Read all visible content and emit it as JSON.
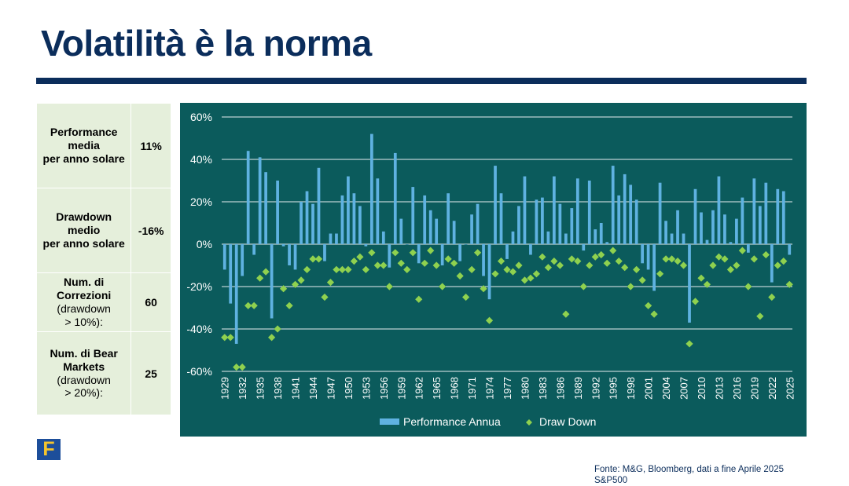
{
  "slide": {
    "title": "Volatilità è la norma",
    "logo_letter": "F",
    "source": "Fonte: M&G, Bloomberg, dati a fine Aprile 2025",
    "index_name": "S&P500"
  },
  "stats_table": [
    {
      "label": [
        "Performance",
        "media",
        "per anno solare"
      ],
      "label_style": "bold",
      "value": "11%"
    },
    {
      "label": [
        "Drawdown",
        "medio",
        "per anno solare"
      ],
      "label_style": "bold",
      "value": "-16%"
    },
    {
      "label": [
        "Num.  di",
        "Correzioni"
      ],
      "label_extra": [
        "(drawdown",
        "> 10%):"
      ],
      "value": "60"
    },
    {
      "label": [
        "Num. di Bear",
        "Markets"
      ],
      "label_extra": [
        "(drawdown",
        "> 20%):"
      ],
      "value": "25"
    }
  ],
  "chart_data": {
    "type": "bar",
    "title": "",
    "xlabel": "",
    "ylabel": "",
    "ylim": [
      -60,
      60
    ],
    "y_ticks": [
      "60%",
      "40%",
      "20%",
      "0%",
      "-20%",
      "-40%",
      "-60%"
    ],
    "y_tick_values": [
      60,
      40,
      20,
      0,
      -20,
      -40,
      -60
    ],
    "grid": true,
    "legend_position": "bottom",
    "x_tick_labels": [
      "1929",
      "1932",
      "1935",
      "1938",
      "1941",
      "1944",
      "1947",
      "1950",
      "1953",
      "1956",
      "1959",
      "1962",
      "1965",
      "1968",
      "1971",
      "1974",
      "1977",
      "1980",
      "1983",
      "1986",
      "1989",
      "1992",
      "1995",
      "1998",
      "2001",
      "2004",
      "2007",
      "2010",
      "2013",
      "2016",
      "2019",
      "2022",
      "2025"
    ],
    "colors": {
      "background": "#0b5b5c",
      "bar": "#5fb2e1",
      "marker": "#8fd14f",
      "grid": "#ffffff",
      "text": "#ffffff"
    },
    "x": [
      1929,
      1930,
      1931,
      1932,
      1933,
      1934,
      1935,
      1936,
      1937,
      1938,
      1939,
      1940,
      1941,
      1942,
      1943,
      1944,
      1945,
      1946,
      1947,
      1948,
      1949,
      1950,
      1951,
      1952,
      1953,
      1954,
      1955,
      1956,
      1957,
      1958,
      1959,
      1960,
      1961,
      1962,
      1963,
      1964,
      1965,
      1966,
      1967,
      1968,
      1969,
      1970,
      1971,
      1972,
      1973,
      1974,
      1975,
      1976,
      1977,
      1978,
      1979,
      1980,
      1981,
      1982,
      1983,
      1984,
      1985,
      1986,
      1987,
      1988,
      1989,
      1990,
      1991,
      1992,
      1993,
      1994,
      1995,
      1996,
      1997,
      1998,
      1999,
      2000,
      2001,
      2002,
      2003,
      2004,
      2005,
      2006,
      2007,
      2008,
      2009,
      2010,
      2011,
      2012,
      2013,
      2014,
      2015,
      2016,
      2017,
      2018,
      2019,
      2020,
      2021,
      2022,
      2023,
      2024,
      2025
    ],
    "series": [
      {
        "name": "Performance Annua",
        "kind": "bar",
        "values": [
          -12,
          -28,
          -47,
          -15,
          44,
          -5,
          41,
          34,
          -35,
          30,
          -1,
          -10,
          -12,
          20,
          25,
          19,
          36,
          -8,
          5,
          5,
          23,
          32,
          24,
          18,
          -1,
          52,
          31,
          6,
          -11,
          43,
          12,
          0,
          27,
          -9,
          23,
          16,
          12,
          -10,
          24,
          11,
          -8,
          0,
          14,
          19,
          -15,
          -26,
          37,
          24,
          -7,
          6,
          18,
          32,
          -5,
          21,
          22,
          6,
          32,
          19,
          5,
          17,
          31,
          -3,
          30,
          7,
          10,
          1,
          37,
          23,
          33,
          28,
          21,
          -9,
          -12,
          -22,
          29,
          11,
          5,
          16,
          5,
          -37,
          26,
          15,
          2,
          16,
          32,
          14,
          1,
          12,
          22,
          -4,
          31,
          18,
          29,
          -18,
          26,
          25,
          -5
        ]
      },
      {
        "name": "Draw Down",
        "kind": "marker",
        "values": [
          -44,
          -44,
          -58,
          -58,
          -29,
          -29,
          -16,
          -13,
          -44,
          -40,
          -21,
          -29,
          -19,
          -17,
          -12,
          -7,
          -7,
          -25,
          -18,
          -12,
          -12,
          -12,
          -8,
          -6,
          -12,
          -4,
          -10,
          -10,
          -20,
          -4,
          -9,
          -12,
          -4,
          -26,
          -9,
          -3,
          -10,
          -20,
          -7,
          -9,
          -15,
          -25,
          -12,
          -4,
          -21,
          -36,
          -14,
          -8,
          -12,
          -13,
          -10,
          -17,
          -16,
          -14,
          -6,
          -11,
          -8,
          -10,
          -33,
          -7,
          -8,
          -20,
          -10,
          -6,
          -5,
          -9,
          -3,
          -8,
          -11,
          -20,
          -12,
          -17,
          -29,
          -33,
          -14,
          -7,
          -7,
          -8,
          -10,
          -47,
          -27,
          -16,
          -19,
          -10,
          -6,
          -7,
          -12,
          -10,
          -3,
          -20,
          -7,
          -34,
          -5,
          -25,
          -10,
          -8,
          -19
        ]
      }
    ]
  }
}
